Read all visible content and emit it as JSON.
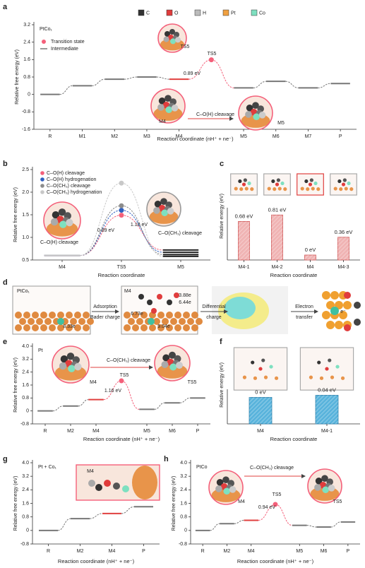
{
  "panel_labels": [
    "a",
    "b",
    "c",
    "d",
    "e",
    "f",
    "g",
    "h"
  ],
  "atom_legend": [
    {
      "name": "C",
      "color": "#333333"
    },
    {
      "name": "O",
      "color": "#e03c3c"
    },
    {
      "name": "H",
      "color": "#bbbbbb"
    },
    {
      "name": "Pt",
      "color": "#f0a040"
    },
    {
      "name": "Co",
      "color": "#7ee0c0"
    }
  ],
  "diagram_d": {
    "panel1": "PtCo₁",
    "panel2": "M4",
    "step1": [
      "Adsorption",
      "Bader charge"
    ],
    "step2": [
      "Differential",
      "charge"
    ],
    "step3": [
      "Electron",
      "transfer"
    ],
    "electron": "e⁻",
    "charges": [
      "8.33e",
      "3.88e",
      "6.44e",
      "6.73e",
      "9.04e"
    ]
  },
  "chart_data": [
    {
      "type": "line",
      "subtitle": "PtCo₁",
      "xlabel": "Reaction coordinate (nH⁺ + ne⁻)",
      "ylabel": "Relative free energy (eV)",
      "categories": [
        "R",
        "M1",
        "M2",
        "M3",
        "M4",
        null,
        "M5",
        "M6",
        "M7",
        "P"
      ],
      "category_colors": [
        "#222222",
        "#222222",
        "#222222",
        "#222222",
        "#e0403f",
        "#222222",
        "#222222",
        "#222222",
        "#222222",
        "#222222"
      ],
      "values": [
        0,
        0.4,
        0.7,
        0.8,
        0.7,
        1.59,
        0.3,
        0.6,
        0.3,
        0.5
      ],
      "color": "#777777",
      "ts_color": "#f4607a",
      "legend": [
        {
          "name": "Transition state",
          "color": "#f4607a"
        },
        {
          "name": "Intermediate",
          "color": "#777777"
        }
      ],
      "ylim": [
        -1.6,
        3.2
      ],
      "yticks": [
        -1.6,
        -0.8,
        0,
        0.8,
        1.6,
        2.4,
        3.2
      ],
      "annotations": [
        "TS5",
        "0.89 eV",
        "TS5",
        "C–O(H) cleavage",
        "M4",
        "M5"
      ]
    },
    {
      "type": "line",
      "xlabel": "Reaction coordinate",
      "ylabel": "Relative free energy (eV)",
      "categories": [
        "M4",
        "TS5",
        "M5"
      ],
      "category_colors": [
        "#e0403f",
        "#e0403f",
        "#222222"
      ],
      "series": [
        {
          "name": "C–O(H) cleavage",
          "color": "#f4607a",
          "values": [
            0.6,
            1.49,
            0.72
          ]
        },
        {
          "name": "C–O(H) hydrogenation",
          "color": "#3060c0",
          "values": [
            0.6,
            1.6,
            0.67
          ]
        },
        {
          "name": "C–O(CH₃) cleavage",
          "color": "#8c8c8c",
          "values": [
            0.6,
            1.7,
            0.62
          ]
        },
        {
          "name": "C–O(CH₃) hydrogenation",
          "color": "#c8c8c8",
          "values": [
            0.6,
            2.2,
            0.58
          ]
        }
      ],
      "ylim": [
        0.5,
        2.5
      ],
      "yticks": [
        {
          "value": 0.5,
          "label": "0.5"
        },
        {
          "value": 1,
          "label": "1.0"
        },
        {
          "value": 1.5,
          "label": "1.5"
        },
        {
          "value": 2,
          "label": "2.0"
        },
        {
          "value": 2.5,
          "label": "2.5"
        }
      ],
      "annotations": [
        "1.10 eV",
        "0.89 eV",
        "C–O(H) cleavage",
        "C–O(CH₃) cleavage"
      ]
    },
    {
      "type": "bar",
      "xlabel": "Reaction coordinate",
      "ylabel": "Relative energy (eV)",
      "categories": [
        "M4-1",
        "M4-2",
        "M4",
        "M4-3"
      ],
      "category_colors": [
        "#222222",
        "#222222",
        "#e0403f",
        "#222222"
      ],
      "values": [
        0.68,
        0.81,
        0,
        0.36
      ],
      "value_labels": [
        "0.68 eV",
        "0.81 eV",
        "0 eV",
        "0.36 eV"
      ],
      "color": "#f0b4b4",
      "edge_color": "#d05858",
      "ylim": [
        -0.1,
        0.9
      ]
    },
    {
      "type": "line",
      "subtitle": "Pt",
      "xlabel": "Reaction coordinate (nH⁺ + ne⁻)",
      "ylabel": "Relative free energy (eV)",
      "categories": [
        "R",
        "M2",
        "M4",
        null,
        "M5",
        "M6",
        "P"
      ],
      "category_colors": [
        "#222222",
        "#222222",
        "#e0403f",
        "#222222",
        "#222222",
        "#222222",
        "#222222"
      ],
      "values": [
        0,
        0.3,
        0.7,
        1.86,
        0.1,
        0.5,
        0.8
      ],
      "color": "#777777",
      "ts_color": "#f4607a",
      "ylim": [
        -0.8,
        4.0
      ],
      "yticks": [
        -0.8,
        0,
        0.8,
        1.6,
        2.4,
        3.2,
        {
          "value": 4,
          "label": "4.0"
        }
      ],
      "annotations": [
        "C–O(CH₃) cleavage",
        "TS5",
        "1.16 eV",
        "M4",
        "TS5"
      ]
    },
    {
      "type": "bar",
      "xlabel": "Reaction coordinate",
      "ylabel": "Relative energy (eV)",
      "categories": [
        "M4",
        "M4-1"
      ],
      "category_colors": [
        "#222222",
        "#222222"
      ],
      "values": [
        0,
        0.04
      ],
      "value_labels": [
        "0 eV",
        "0.04 eV"
      ],
      "color": "#5ab4dc",
      "edge_color": "#2a7eaa",
      "ylim": [
        -0.5,
        0.1
      ]
    },
    {
      "type": "line",
      "subtitle": "Pt + Co₁",
      "xlabel": "Reaction coordinate (nH⁺ + ne⁻)",
      "ylabel": "Relative free energy (eV)",
      "categories": [
        "R",
        "M2",
        "M4",
        "P"
      ],
      "category_colors": [
        "#222222",
        "#222222",
        "#e0403f",
        "#222222"
      ],
      "values": [
        0,
        0.7,
        1.0,
        1.4
      ],
      "color": "#777777",
      "ylim": [
        -0.8,
        4.0
      ],
      "yticks": [
        -0.8,
        0,
        0.8,
        1.6,
        2.4,
        3.2,
        {
          "value": 4,
          "label": "4.0"
        }
      ],
      "annotations": [
        "M4"
      ]
    },
    {
      "type": "line",
      "subtitle": "PtCo",
      "xlabel": "Reaction coordinate (nH⁺ + ne⁻)",
      "ylabel": "Relative free energy (eV)",
      "categories": [
        "R",
        "M2",
        "M4",
        null,
        "M5",
        "M6",
        "P"
      ],
      "category_colors": [
        "#222222",
        "#222222",
        "#e0403f",
        "#222222",
        "#222222",
        "#222222",
        "#222222"
      ],
      "values": [
        0,
        0.4,
        0.6,
        1.54,
        0.3,
        0.2,
        0.5
      ],
      "color": "#777777",
      "ts_color": "#f4607a",
      "ylim": [
        -0.8,
        4.0
      ],
      "yticks": [
        -0.8,
        0,
        0.8,
        1.6,
        2.4,
        3.2,
        {
          "value": 4,
          "label": "4.0"
        }
      ],
      "annotations": [
        "C–O(CH₃) cleavage",
        "TS5",
        "0.94 eV",
        "M4",
        "TS5"
      ]
    }
  ]
}
